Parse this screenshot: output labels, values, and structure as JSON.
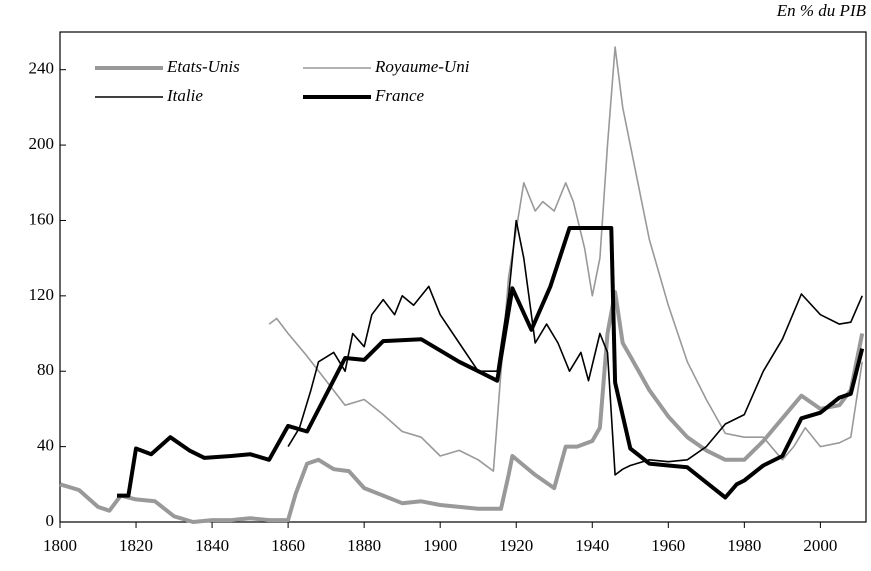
{
  "chart_data": {
    "type": "line",
    "title": "En % du PIB",
    "xlim": [
      1800,
      2012
    ],
    "ylim": [
      0,
      260
    ],
    "xticks": [
      1800,
      1820,
      1840,
      1860,
      1880,
      1900,
      1920,
      1940,
      1960,
      1980,
      2000
    ],
    "yticks": [
      0,
      40,
      80,
      120,
      160,
      200,
      240
    ],
    "legend": "upper left",
    "series": [
      {
        "name": "Etats-Unis",
        "color": "#999999",
        "line_width": 4,
        "x": [
          1800,
          1805,
          1810,
          1813,
          1816,
          1820,
          1825,
          1830,
          1835,
          1840,
          1845,
          1850,
          1855,
          1860,
          1862,
          1865,
          1868,
          1872,
          1876,
          1880,
          1885,
          1890,
          1895,
          1900,
          1905,
          1910,
          1916,
          1918,
          1919,
          1922,
          1925,
          1930,
          1933,
          1936,
          1940,
          1942,
          1944,
          1946,
          1948,
          1950,
          1955,
          1960,
          1965,
          1970,
          1975,
          1980,
          1985,
          1990,
          1995,
          2000,
          2005,
          2008,
          2011
        ],
        "values": [
          20,
          17,
          8,
          6,
          14,
          12,
          11,
          3,
          0,
          1,
          1,
          2,
          1,
          1,
          15,
          31,
          33,
          28,
          27,
          18,
          14,
          10,
          11,
          9,
          8,
          7,
          7,
          25,
          35,
          30,
          25,
          18,
          40,
          40,
          43,
          50,
          100,
          122,
          95,
          88,
          70,
          56,
          45,
          38,
          33,
          33,
          43,
          55,
          67,
          60,
          62,
          70,
          100
        ]
      },
      {
        "name": "Royaume-Uni",
        "color": "#999999",
        "line_width": 1.6,
        "x": [
          1855,
          1857,
          1860,
          1865,
          1870,
          1875,
          1880,
          1885,
          1890,
          1895,
          1900,
          1905,
          1910,
          1914,
          1916,
          1918,
          1920,
          1922,
          1925,
          1927,
          1930,
          1933,
          1935,
          1938,
          1940,
          1942,
          1944,
          1946,
          1948,
          1950,
          1955,
          1960,
          1965,
          1970,
          1975,
          1980,
          1985,
          1990,
          1993,
          1996,
          2000,
          2005,
          2008,
          2011
        ],
        "values": [
          105,
          108,
          100,
          88,
          75,
          62,
          65,
          57,
          48,
          45,
          35,
          38,
          33,
          27,
          80,
          130,
          155,
          180,
          165,
          170,
          165,
          180,
          170,
          145,
          120,
          140,
          200,
          252,
          220,
          200,
          150,
          115,
          85,
          65,
          47,
          45,
          45,
          33,
          40,
          50,
          40,
          42,
          45,
          85
        ]
      },
      {
        "name": "Italie",
        "color": "#000000",
        "line_width": 1.6,
        "x": [
          1860,
          1863,
          1866,
          1868,
          1872,
          1875,
          1877,
          1880,
          1882,
          1885,
          1888,
          1890,
          1893,
          1897,
          1900,
          1905,
          1910,
          1915,
          1918,
          1920,
          1922,
          1925,
          1928,
          1931,
          1934,
          1937,
          1939,
          1942,
          1944,
          1946,
          1948,
          1950,
          1955,
          1960,
          1965,
          1970,
          1975,
          1980,
          1985,
          1990,
          1995,
          2000,
          2005,
          2008,
          2011
        ],
        "values": [
          40,
          50,
          70,
          85,
          90,
          80,
          100,
          93,
          110,
          118,
          110,
          120,
          115,
          125,
          110,
          95,
          80,
          80,
          120,
          160,
          140,
          95,
          105,
          95,
          80,
          90,
          75,
          100,
          90,
          25,
          28,
          30,
          33,
          32,
          33,
          40,
          52,
          57,
          80,
          97,
          121,
          110,
          105,
          106,
          120
        ]
      },
      {
        "name": "France",
        "color": "#000000",
        "line_width": 4,
        "x": [
          1815,
          1818,
          1820,
          1824,
          1829,
          1834,
          1838,
          1845,
          1850,
          1855,
          1860,
          1865,
          1875,
          1880,
          1885,
          1895,
          1905,
          1911,
          1915,
          1919,
          1924,
          1929,
          1934,
          1945,
          1946,
          1950,
          1955,
          1960,
          1965,
          1970,
          1975,
          1978,
          1980,
          1985,
          1990,
          1995,
          2000,
          2005,
          2008,
          2011
        ],
        "values": [
          14,
          14,
          39,
          36,
          45,
          38,
          34,
          35,
          36,
          33,
          51,
          48,
          87,
          86,
          96,
          97,
          85,
          79,
          75,
          124,
          102,
          125,
          156,
          156,
          74,
          39,
          31,
          30,
          29,
          21,
          13,
          20,
          22,
          30,
          35,
          55,
          58,
          66,
          68,
          92
        ]
      }
    ]
  }
}
